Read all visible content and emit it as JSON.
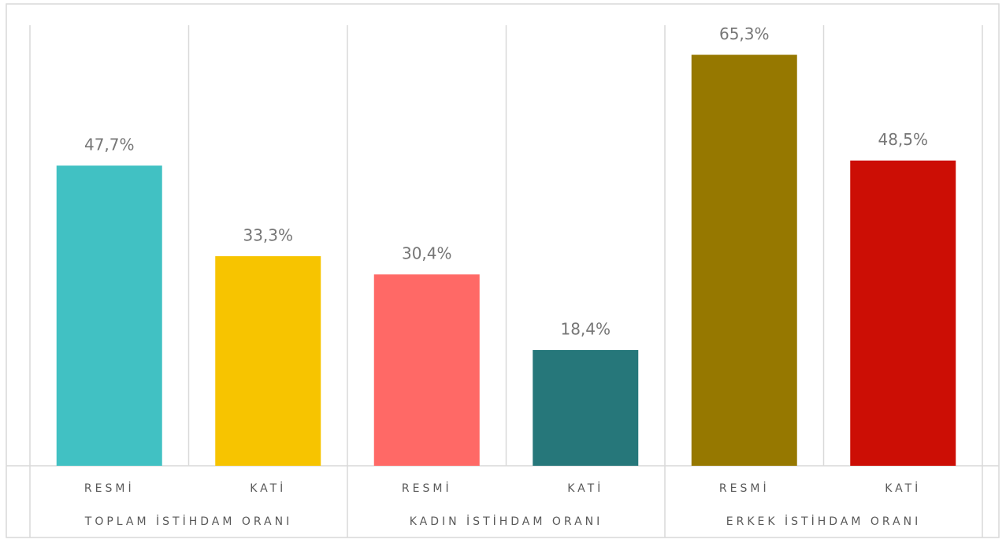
{
  "chart_data": {
    "type": "bar",
    "categories": [
      "RESMİ",
      "KATİ",
      "RESMİ",
      "KATİ",
      "RESMİ",
      "KATİ"
    ],
    "groups": [
      {
        "label": "TOPLAM İSTİHDAM ORANI",
        "size": 2
      },
      {
        "label": "KADIN İSTİHDAM ORANI",
        "size": 2
      },
      {
        "label": "ERKEK İSTİHDAM ORANI",
        "size": 2
      }
    ],
    "values": [
      47.7,
      33.3,
      30.4,
      18.4,
      65.3,
      48.5
    ],
    "value_labels": [
      "47,7%",
      "33,3%",
      "30,4%",
      "18,4%",
      "65,3%",
      "48,5%"
    ],
    "colors": [
      "#41c1c3",
      "#f7c400",
      "#ff6966",
      "#26777a",
      "#967800",
      "#cc0e05"
    ],
    "ylim": [
      0,
      70
    ]
  }
}
